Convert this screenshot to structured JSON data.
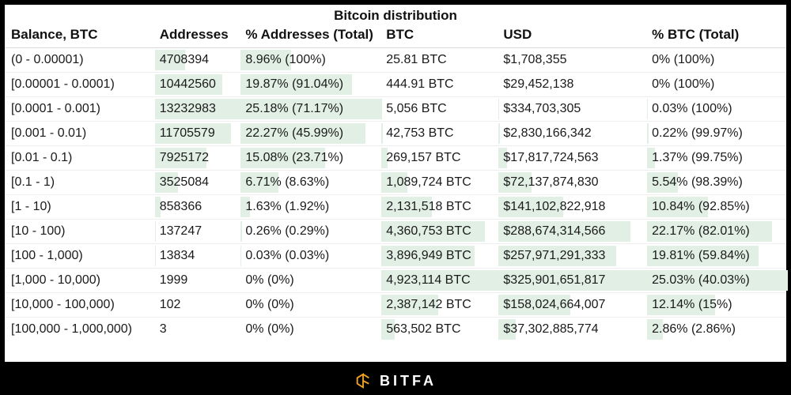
{
  "title": "Bitcoin distribution",
  "footer_brand": "BITFA",
  "colors": {
    "page_bg": "#000000",
    "panel_bg": "#ffffff",
    "bar_fill": "#e1efe5",
    "row_border": "#eeeeee",
    "header_border": "#d9d9d9",
    "text": "#1a1a1a",
    "footer_text": "#ffffff",
    "logo_stroke": "#f5a623"
  },
  "columns": [
    {
      "key": "balance",
      "label": "Balance, BTC",
      "width": "19%"
    },
    {
      "key": "addr",
      "label": "Addresses",
      "width": "11%"
    },
    {
      "key": "pct_addr",
      "label": "% Addresses (Total)",
      "width": "18%"
    },
    {
      "key": "btc",
      "label": "BTC",
      "width": "15%"
    },
    {
      "key": "usd",
      "label": "USD",
      "width": "19%"
    },
    {
      "key": "pct_btc",
      "label": "% BTC (Total)",
      "width": "18%"
    }
  ],
  "bar_columns": [
    "addr",
    "pct_addr",
    "btc",
    "usd",
    "pct_btc"
  ],
  "bar_scale": {
    "addr": {
      "max": 13232983
    },
    "pct_addr": {
      "max": 25.18
    },
    "btc": {
      "max": 4923114
    },
    "usd": {
      "max": 325901651817
    },
    "pct_btc": {
      "max": 25.03
    }
  },
  "rows": [
    {
      "balance": "(0 - 0.00001)",
      "addr": "4708394",
      "addr_v": 4708394,
      "pct_addr": "8.96% (100%)",
      "pct_addr_v": 8.96,
      "btc": "25.81 BTC",
      "btc_v": 25.81,
      "usd": "$1,708,355",
      "usd_v": 1708355,
      "pct_btc": "0% (100%)",
      "pct_btc_v": 0
    },
    {
      "balance": "[0.00001 - 0.0001)",
      "addr": "10442560",
      "addr_v": 10442560,
      "pct_addr": "19.87% (91.04%)",
      "pct_addr_v": 19.87,
      "btc": "444.91 BTC",
      "btc_v": 444.91,
      "usd": "$29,452,138",
      "usd_v": 29452138,
      "pct_btc": "0% (100%)",
      "pct_btc_v": 0
    },
    {
      "balance": "[0.0001 - 0.001)",
      "addr": "13232983",
      "addr_v": 13232983,
      "pct_addr": "25.18% (71.17%)",
      "pct_addr_v": 25.18,
      "btc": "5,056 BTC",
      "btc_v": 5056,
      "usd": "$334,703,305",
      "usd_v": 334703305,
      "pct_btc": "0.03% (100%)",
      "pct_btc_v": 0.03
    },
    {
      "balance": "[0.001 - 0.01)",
      "addr": "11705579",
      "addr_v": 11705579,
      "pct_addr": "22.27% (45.99%)",
      "pct_addr_v": 22.27,
      "btc": "42,753 BTC",
      "btc_v": 42753,
      "usd": "$2,830,166,342",
      "usd_v": 2830166342,
      "pct_btc": "0.22% (99.97%)",
      "pct_btc_v": 0.22
    },
    {
      "balance": "[0.01 - 0.1)",
      "addr": "7925172",
      "addr_v": 7925172,
      "pct_addr": "15.08% (23.71%)",
      "pct_addr_v": 15.08,
      "btc": "269,157 BTC",
      "btc_v": 269157,
      "usd": "$17,817,724,563",
      "usd_v": 17817724563,
      "pct_btc": "1.37% (99.75%)",
      "pct_btc_v": 1.37
    },
    {
      "balance": "[0.1 - 1)",
      "addr": "3525084",
      "addr_v": 3525084,
      "pct_addr": "6.71% (8.63%)",
      "pct_addr_v": 6.71,
      "btc": "1,089,724 BTC",
      "btc_v": 1089724,
      "usd": "$72,137,874,830",
      "usd_v": 72137874830,
      "pct_btc": "5.54% (98.39%)",
      "pct_btc_v": 5.54
    },
    {
      "balance": "[1 - 10)",
      "addr": "858366",
      "addr_v": 858366,
      "pct_addr": "1.63% (1.92%)",
      "pct_addr_v": 1.63,
      "btc": "2,131,518 BTC",
      "btc_v": 2131518,
      "usd": "$141,102,822,918",
      "usd_v": 141102822918,
      "pct_btc": "10.84% (92.85%)",
      "pct_btc_v": 10.84
    },
    {
      "balance": "[10 - 100)",
      "addr": "137247",
      "addr_v": 137247,
      "pct_addr": "0.26% (0.29%)",
      "pct_addr_v": 0.26,
      "btc": "4,360,753 BTC",
      "btc_v": 4360753,
      "usd": "$288,674,314,566",
      "usd_v": 288674314566,
      "pct_btc": "22.17% (82.01%)",
      "pct_btc_v": 22.17
    },
    {
      "balance": "[100 - 1,000)",
      "addr": "13834",
      "addr_v": 13834,
      "pct_addr": "0.03% (0.03%)",
      "pct_addr_v": 0.03,
      "btc": "3,896,949 BTC",
      "btc_v": 3896949,
      "usd": "$257,971,291,333",
      "usd_v": 257971291333,
      "pct_btc": "19.81% (59.84%)",
      "pct_btc_v": 19.81
    },
    {
      "balance": "[1,000 - 10,000)",
      "addr": "1999",
      "addr_v": 1999,
      "pct_addr": "0% (0%)",
      "pct_addr_v": 0,
      "btc": "4,923,114 BTC",
      "btc_v": 4923114,
      "usd": "$325,901,651,817",
      "usd_v": 325901651817,
      "pct_btc": "25.03% (40.03%)",
      "pct_btc_v": 25.03
    },
    {
      "balance": "[10,000 - 100,000)",
      "addr": "102",
      "addr_v": 102,
      "pct_addr": "0% (0%)",
      "pct_addr_v": 0,
      "btc": "2,387,142 BTC",
      "btc_v": 2387142,
      "usd": "$158,024,664,007",
      "usd_v": 158024664007,
      "pct_btc": "12.14% (15%)",
      "pct_btc_v": 12.14
    },
    {
      "balance": "[100,000 - 1,000,000)",
      "addr": "3",
      "addr_v": 3,
      "pct_addr": "0% (0%)",
      "pct_addr_v": 0,
      "btc": "563,502 BTC",
      "btc_v": 563502,
      "usd": "$37,302,885,774",
      "usd_v": 37302885774,
      "pct_btc": "2.86% (2.86%)",
      "pct_btc_v": 2.86
    }
  ]
}
